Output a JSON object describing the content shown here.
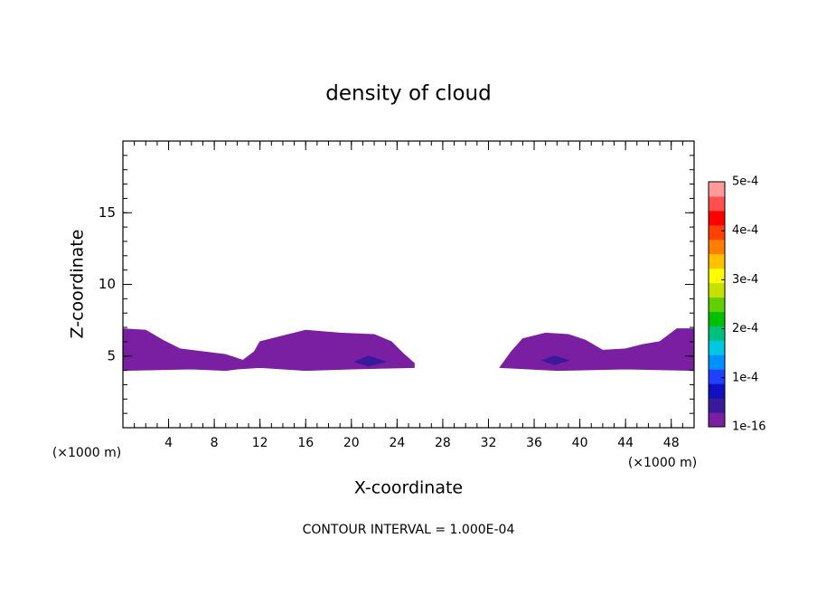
{
  "chart_data": {
    "type": "contour",
    "title": "density of cloud",
    "xlabel": "X-coordinate",
    "ylabel": "Z-coordinate",
    "xunit": "(×1000 m)",
    "footer": "CONTOUR INTERVAL = 1.000E-04",
    "xlim": [
      0,
      50
    ],
    "ylim": [
      0,
      20
    ],
    "xticks": [
      4,
      8,
      12,
      16,
      20,
      24,
      28,
      32,
      36,
      40,
      44,
      48
    ],
    "yticks": [
      5,
      10,
      15
    ],
    "colorbar": {
      "lim": [
        1e-16,
        0.0005
      ],
      "ticks": [
        {
          "value": 1e-16,
          "label": "1e-16"
        },
        {
          "value": 0.0001,
          "label": "1e-4"
        },
        {
          "value": 0.0002,
          "label": "2e-4"
        },
        {
          "value": 0.0003,
          "label": "3e-4"
        },
        {
          "value": 0.0004,
          "label": "4e-4"
        },
        {
          "value": 0.0005,
          "label": "5e-4"
        }
      ],
      "colormap": [
        "#7a1fa2",
        "#3a1a9a",
        "#1010c0",
        "#2040ff",
        "#0090ff",
        "#00c8e0",
        "#00c080",
        "#00c000",
        "#60d000",
        "#c8e000",
        "#ffff00",
        "#ffc000",
        "#ff8000",
        "#ff4000",
        "#ff0000",
        "#ff5050",
        "#ff9a9a"
      ]
    },
    "regions": [
      {
        "level": 1e-16,
        "color": "#7a1fa2",
        "x": [
          0,
          6,
          9,
          10,
          12,
          16,
          20,
          25.5,
          25.5,
          24.5,
          23.5,
          22,
          19,
          16,
          13.5,
          12,
          11.5,
          10.5,
          9,
          7,
          5,
          3.5,
          2,
          0
        ],
        "z": [
          4,
          4.1,
          4,
          4.1,
          4.2,
          4,
          4.1,
          4.2,
          4.5,
          5.2,
          6,
          6.5,
          6.6,
          6.8,
          6.3,
          6,
          5.3,
          4.7,
          5.1,
          5.3,
          5.5,
          6.1,
          6.8,
          6.9
        ]
      },
      {
        "level": 1e-16,
        "color": "#7a1fa2",
        "x": [
          33,
          38,
          44,
          50,
          50,
          48.5,
          47,
          45.5,
          44,
          42,
          40.5,
          39,
          37,
          35,
          34
        ],
        "z": [
          4.2,
          4,
          4.1,
          4,
          6.9,
          6.9,
          6,
          5.8,
          5.5,
          5.4,
          6.1,
          6.5,
          6.6,
          6.2,
          5.3
        ]
      },
      {
        "level": 0.0001,
        "color": "#3a1a9a",
        "x": [
          20.3,
          21.5,
          23,
          21.5
        ],
        "z": [
          4.6,
          5,
          4.6,
          4.3
        ]
      },
      {
        "level": 0.0001,
        "color": "#3a1a9a",
        "x": [
          36.7,
          37.8,
          39,
          37.8
        ],
        "z": [
          4.7,
          5,
          4.7,
          4.4
        ]
      }
    ]
  }
}
